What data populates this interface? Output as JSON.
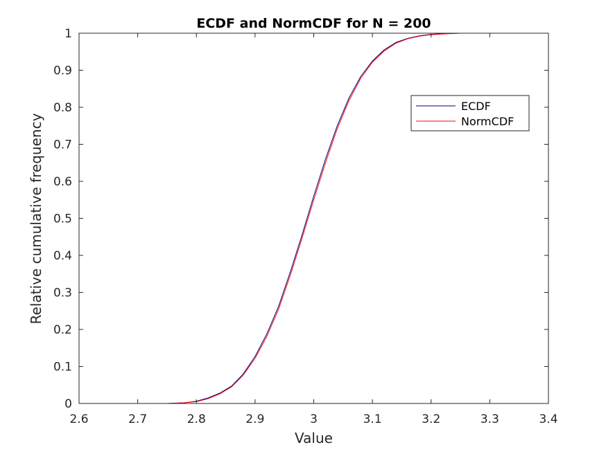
{
  "chart_data": {
    "type": "line",
    "title": "ECDF and NormCDF for N = 200",
    "xlabel": "Value",
    "ylabel": "Relative cumulative frequency",
    "xlim": [
      2.6,
      3.4
    ],
    "ylim": [
      0,
      1
    ],
    "xticks": [
      "2.6",
      "2.7",
      "2.8",
      "2.9",
      "3",
      "3.1",
      "3.2",
      "3.3",
      "3.4"
    ],
    "yticks": [
      "0",
      "0.1",
      "0.2",
      "0.3",
      "0.4",
      "0.5",
      "0.6",
      "0.7",
      "0.8",
      "0.9",
      "1"
    ],
    "grid": false,
    "legend_location": "upper right (inside)",
    "series": [
      {
        "name": "ECDF",
        "color": "#00007f",
        "x": [
          2.685,
          2.75,
          2.78,
          2.8,
          2.82,
          2.84,
          2.86,
          2.88,
          2.9,
          2.92,
          2.94,
          2.96,
          2.98,
          3.0,
          3.02,
          3.04,
          3.06,
          3.08,
          3.1,
          3.12,
          3.14,
          3.16,
          3.18,
          3.2,
          3.22,
          3.25,
          3.3,
          3.345
        ],
        "y": [
          0.0,
          0.0,
          0.002,
          0.006,
          0.015,
          0.028,
          0.047,
          0.08,
          0.127,
          0.188,
          0.262,
          0.355,
          0.455,
          0.56,
          0.66,
          0.75,
          0.825,
          0.883,
          0.925,
          0.955,
          0.975,
          0.986,
          0.993,
          0.997,
          0.999,
          1.0,
          1.0,
          1.0
        ]
      },
      {
        "name": "NormCDF",
        "color": "#ff0000",
        "x": [
          2.685,
          2.75,
          2.78,
          2.8,
          2.82,
          2.84,
          2.86,
          2.88,
          2.9,
          2.92,
          2.94,
          2.96,
          2.98,
          3.0,
          3.02,
          3.04,
          3.06,
          3.08,
          3.1,
          3.12,
          3.14,
          3.16,
          3.18,
          3.2,
          3.22,
          3.25,
          3.3,
          3.345
        ],
        "y": [
          0.0,
          0.0,
          0.002,
          0.005,
          0.013,
          0.026,
          0.045,
          0.077,
          0.122,
          0.181,
          0.254,
          0.346,
          0.446,
          0.55,
          0.65,
          0.742,
          0.818,
          0.878,
          0.922,
          0.952,
          0.973,
          0.985,
          0.992,
          0.996,
          0.998,
          1.0,
          1.0,
          1.0
        ]
      }
    ]
  }
}
